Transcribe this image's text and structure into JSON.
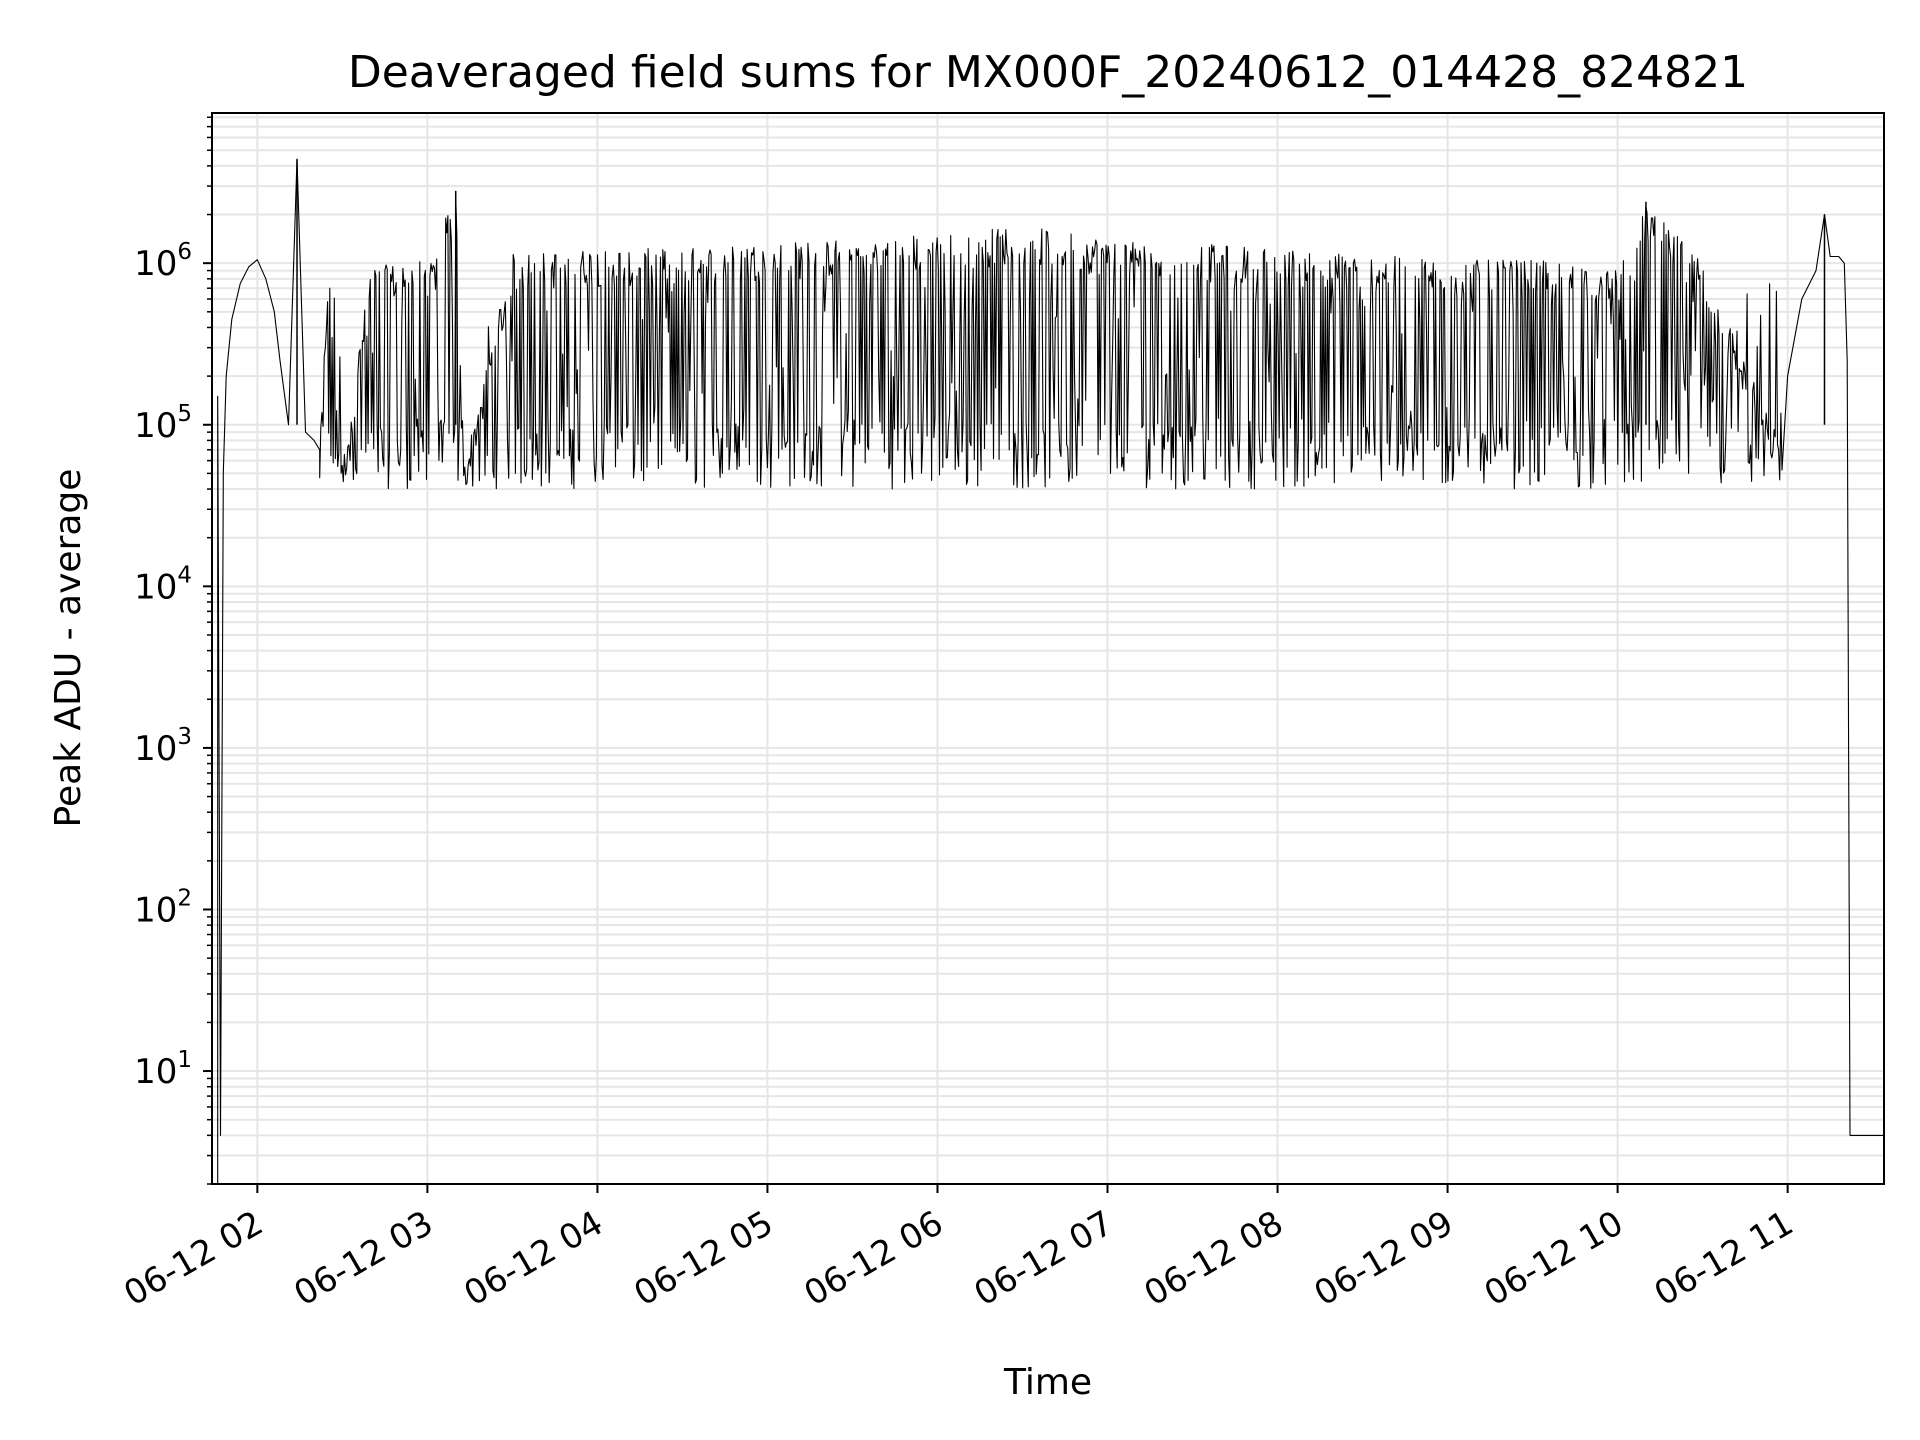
{
  "chart_data": {
    "type": "line",
    "title": "Deaveraged field sums for MX000F_20240612_014428_824821",
    "xlabel": "Time",
    "ylabel": "Peak ADU - average",
    "y_scale": "log",
    "ylim": [
      2.0,
      8500000
    ],
    "xlim": [
      "2024-06-12 01:44",
      "2024-06-12 11:34"
    ],
    "x_ticks": [
      {
        "label": "06-12 02",
        "value": "2024-06-12 02:00"
      },
      {
        "label": "06-12 03",
        "value": "2024-06-12 03:00"
      },
      {
        "label": "06-12 04",
        "value": "2024-06-12 04:00"
      },
      {
        "label": "06-12 05",
        "value": "2024-06-12 05:00"
      },
      {
        "label": "06-12 06",
        "value": "2024-06-12 06:00"
      },
      {
        "label": "06-12 07",
        "value": "2024-06-12 07:00"
      },
      {
        "label": "06-12 08",
        "value": "2024-06-12 08:00"
      },
      {
        "label": "06-12 09",
        "value": "2024-06-12 09:00"
      },
      {
        "label": "06-12 10",
        "value": "2024-06-12 10:00"
      },
      {
        "label": "06-12 11",
        "value": "2024-06-12 11:00"
      }
    ],
    "y_ticks": [
      {
        "base": "10",
        "exp": "1",
        "value": 10
      },
      {
        "base": "10",
        "exp": "2",
        "value": 100
      },
      {
        "base": "10",
        "exp": "3",
        "value": 1000
      },
      {
        "base": "10",
        "exp": "4",
        "value": 10000
      },
      {
        "base": "10",
        "exp": "5",
        "value": 100000
      },
      {
        "base": "10",
        "exp": "6",
        "value": 1000000
      }
    ],
    "grid": true,
    "line_color": "#000000",
    "grid_color": "#e6e6e6",
    "series": [
      {
        "x": [
          "2024-06-12 01:46",
          "2024-06-12 01:46",
          "2024-06-12 01:47",
          "2024-06-12 01:48",
          "2024-06-12 01:49",
          "2024-06-12 01:51",
          "2024-06-12 01:54",
          "2024-06-12 01:57",
          "2024-06-12 02:00",
          "2024-06-12 02:03",
          "2024-06-12 02:06",
          "2024-06-12 02:08",
          "2024-06-12 02:11",
          "2024-06-12 02:14",
          "2024-06-12 02:17",
          "2024-06-12 02:20",
          "2024-06-12 02:22",
          "2024-06-12 02:25",
          "2024-06-12 02:30",
          "2024-06-12 02:40",
          "2024-06-12 03:00",
          "2024-06-12 03:10",
          "2024-06-12 03:13",
          "2024-06-12 03:30",
          "2024-06-12 04:00",
          "2024-06-12 04:30",
          "2024-06-12 05:00",
          "2024-06-12 05:30",
          "2024-06-12 06:00",
          "2024-06-12 06:30",
          "2024-06-12 07:00",
          "2024-06-12 07:30",
          "2024-06-12 08:00",
          "2024-06-12 08:30",
          "2024-06-12 09:00",
          "2024-06-12 09:30",
          "2024-06-12 10:00",
          "2024-06-12 10:10",
          "2024-06-12 10:30",
          "2024-06-12 10:55",
          "2024-06-12 11:00",
          "2024-06-12 11:05",
          "2024-06-12 11:10",
          "2024-06-12 11:13",
          "2024-06-12 11:15",
          "2024-06-12 11:18",
          "2024-06-12 11:20",
          "2024-06-12 11:21",
          "2024-06-12 11:22",
          "2024-06-12 11:34"
        ],
        "y": [
          2.0,
          150000,
          4,
          50000,
          200000,
          450000,
          750000,
          950000,
          1050000,
          800000,
          500000,
          250000,
          100000,
          4400000,
          90000,
          80000,
          70000,
          1100000,
          60000,
          1000000,
          1100000,
          2800000,
          60000,
          1200000,
          1300000,
          1300000,
          1400000,
          1500000,
          1600000,
          1800000,
          1500000,
          1400000,
          1300000,
          1200000,
          1100000,
          1100000,
          1000000,
          2400000,
          1100000,
          100000,
          200000,
          600000,
          900000,
          2000000,
          1100000,
          1100000,
          1000000,
          250000,
          4,
          4
        ],
        "noise_band": {
          "low": [
            40000,
            110000
          ],
          "high": [
            700000,
            1600000
          ]
        }
      }
    ]
  }
}
